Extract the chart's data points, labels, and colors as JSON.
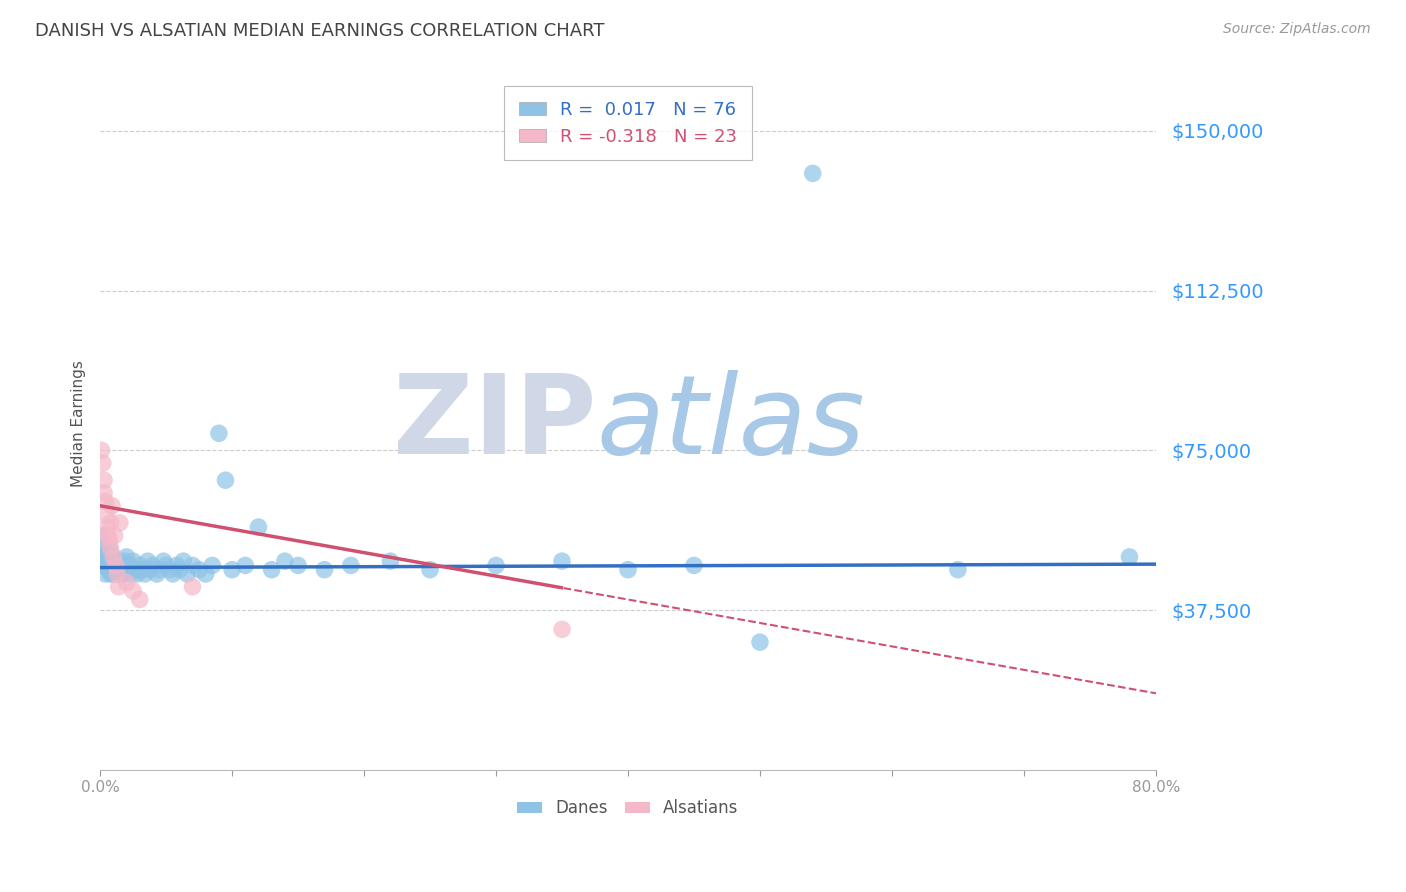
{
  "title": "DANISH VS ALSATIAN MEDIAN EARNINGS CORRELATION CHART",
  "source": "Source: ZipAtlas.com",
  "xlabel": "",
  "ylabel": "Median Earnings",
  "xlim": [
    0.0,
    0.8
  ],
  "ylim": [
    0,
    162500
  ],
  "yticks": [
    0,
    37500,
    75000,
    112500,
    150000
  ],
  "ytick_labels": [
    "",
    "$37,500",
    "$75,000",
    "$112,500",
    "$150,000"
  ],
  "xticks": [
    0.0,
    0.1,
    0.2,
    0.3,
    0.4,
    0.5,
    0.6,
    0.7,
    0.8
  ],
  "xtick_labels": [
    "0.0%",
    "",
    "",
    "",
    "",
    "",
    "",
    "",
    "80.0%"
  ],
  "danes_color": "#8ec3e6",
  "alsatians_color": "#f5b8c8",
  "trend_danes_color": "#3370c4",
  "trend_alsatians_color": "#d05070",
  "danes_R": 0.017,
  "danes_N": 76,
  "alsatians_R": -0.318,
  "alsatians_N": 23,
  "danes_x": [
    0.001,
    0.002,
    0.003,
    0.003,
    0.004,
    0.005,
    0.005,
    0.006,
    0.006,
    0.007,
    0.007,
    0.008,
    0.008,
    0.009,
    0.009,
    0.01,
    0.01,
    0.011,
    0.011,
    0.012,
    0.013,
    0.013,
    0.014,
    0.015,
    0.015,
    0.016,
    0.017,
    0.018,
    0.019,
    0.02,
    0.021,
    0.022,
    0.023,
    0.025,
    0.026,
    0.028,
    0.03,
    0.032,
    0.034,
    0.036,
    0.038,
    0.04,
    0.043,
    0.045,
    0.048,
    0.05,
    0.053,
    0.055,
    0.058,
    0.06,
    0.063,
    0.066,
    0.07,
    0.075,
    0.08,
    0.085,
    0.09,
    0.095,
    0.1,
    0.11,
    0.12,
    0.13,
    0.14,
    0.15,
    0.17,
    0.19,
    0.22,
    0.25,
    0.3,
    0.35,
    0.4,
    0.45,
    0.5,
    0.54,
    0.65,
    0.78
  ],
  "danes_y": [
    55000,
    52000,
    50000,
    48000,
    46000,
    49000,
    51000,
    47000,
    50000,
    48000,
    52000,
    46000,
    49000,
    48000,
    47000,
    50000,
    46000,
    48000,
    47000,
    49000,
    46000,
    48000,
    47000,
    49000,
    46000,
    48000,
    47000,
    46000,
    49000,
    50000,
    47000,
    48000,
    46000,
    49000,
    47000,
    46000,
    48000,
    47000,
    46000,
    49000,
    47000,
    48000,
    46000,
    47000,
    49000,
    48000,
    47000,
    46000,
    48000,
    47000,
    49000,
    46000,
    48000,
    47000,
    46000,
    48000,
    79000,
    68000,
    47000,
    48000,
    57000,
    47000,
    49000,
    48000,
    47000,
    48000,
    49000,
    47000,
    48000,
    49000,
    47000,
    48000,
    30000,
    140000,
    47000,
    50000
  ],
  "alsatians_x": [
    0.001,
    0.002,
    0.003,
    0.003,
    0.004,
    0.005,
    0.005,
    0.006,
    0.007,
    0.008,
    0.008,
    0.009,
    0.01,
    0.011,
    0.012,
    0.013,
    0.014,
    0.015,
    0.02,
    0.025,
    0.03,
    0.07,
    0.35
  ],
  "alsatians_y": [
    75000,
    72000,
    68000,
    65000,
    63000,
    60000,
    57000,
    55000,
    54000,
    52000,
    58000,
    62000,
    50000,
    55000,
    48000,
    46000,
    43000,
    58000,
    44000,
    42000,
    40000,
    43000,
    33000
  ],
  "background_color": "#ffffff",
  "grid_color": "#cccccc",
  "trend_danes_intercept": 47500,
  "trend_danes_slope": 1000,
  "trend_alsatians_intercept": 62000,
  "trend_alsatians_slope": -55000,
  "trend_alsatians_solid_end": 0.35,
  "watermark_ZIP_color": "#d0d8e8",
  "watermark_atlas_color": "#a8c8e8"
}
